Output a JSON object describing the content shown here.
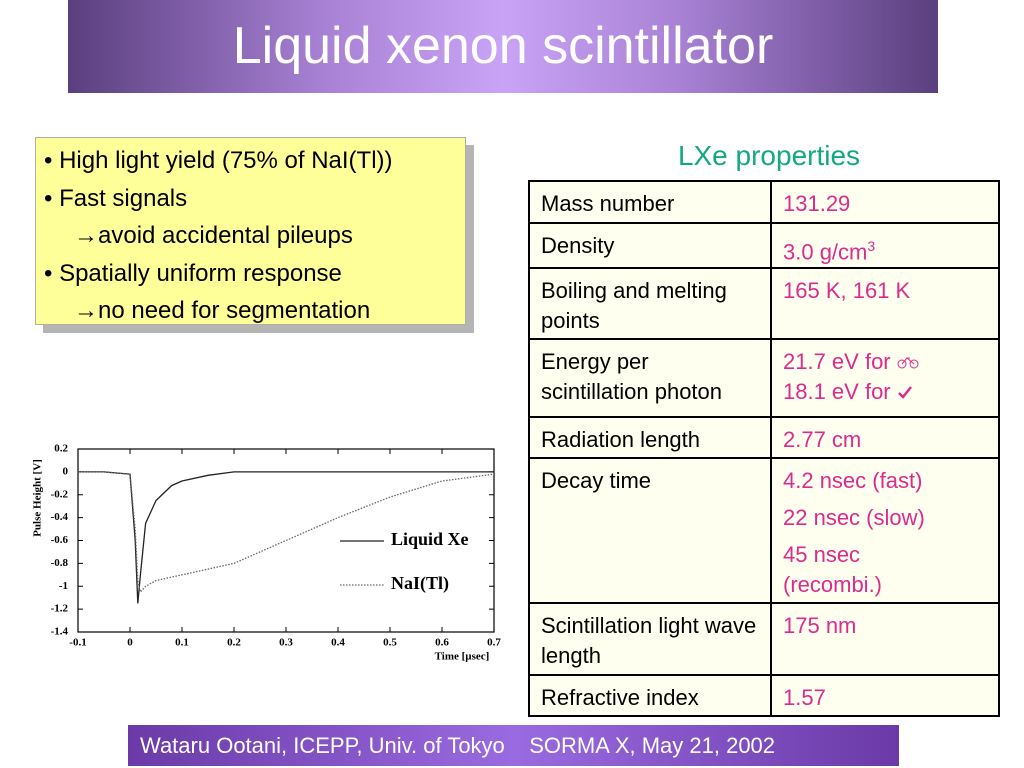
{
  "header": {
    "title": "Liquid xenon scintillator"
  },
  "bullets": [
    "High light yield (75% of NaI(Tl))",
    "Fast signals",
    "avoid accidental pileups",
    "Spatially uniform response",
    "no need for segmentation"
  ],
  "table": {
    "title": "LXe properties",
    "rows": [
      [
        "Mass number",
        "131.29"
      ],
      [
        "Density",
        "3.0 g/cm",
        "3"
      ],
      [
        "Boiling and melting points",
        "165 K, 161 K"
      ],
      [
        "Energy per scintillation photon",
        "21.7 eV for",
        "18.1 eV for"
      ],
      [
        "Radiation length",
        "2.77 cm"
      ],
      [
        "Decay time",
        "4.2 nsec (fast)",
        "22 nsec (slow)",
        "45 nsec (recombi.)"
      ],
      [
        "Scintillation light wave length",
        "175 nm"
      ],
      [
        "Refractive index",
        "1.57"
      ]
    ]
  },
  "footer": {
    "author": "Wataru Ootani, ICEPP, Univ. of Tokyo",
    "event": "SORMA X, May 21, 2002"
  },
  "chart_data": {
    "type": "line",
    "x_label": "Time [µsec]",
    "y_label": "Pulse Height [V]",
    "x": [
      -0.1,
      -0.05,
      0,
      0.01,
      0.015,
      0.02,
      0.03,
      0.05,
      0.08,
      0.1,
      0.15,
      0.2,
      0.3,
      0.4,
      0.5,
      0.6,
      0.7
    ],
    "series": [
      {
        "name": "Liquid Xe",
        "color": "#222222",
        "style": "solid",
        "values": [
          0,
          0,
          -0.02,
          -0.6,
          -1.15,
          -0.9,
          -0.45,
          -0.25,
          -0.12,
          -0.08,
          -0.03,
          0,
          0,
          0,
          0,
          0,
          0
        ]
      },
      {
        "name": "NaI(Tl)",
        "color": "#666666",
        "style": "dotted",
        "values": [
          0,
          0,
          -0.02,
          -0.5,
          -0.95,
          -1.05,
          -1.0,
          -0.95,
          -0.92,
          -0.9,
          -0.85,
          -0.8,
          -0.6,
          -0.4,
          -0.22,
          -0.08,
          -0.02
        ]
      }
    ],
    "xlim": [
      -0.1,
      0.7
    ],
    "xticks": [
      -0.1,
      0,
      0.1,
      0.2,
      0.3,
      0.4,
      0.5,
      0.6,
      0.7
    ],
    "ylim": [
      -1.4,
      0.2
    ],
    "yticks": [
      0.2,
      0,
      -0.2,
      -0.4,
      -0.6,
      -0.8,
      -1,
      -1.2,
      -1.4
    ]
  }
}
